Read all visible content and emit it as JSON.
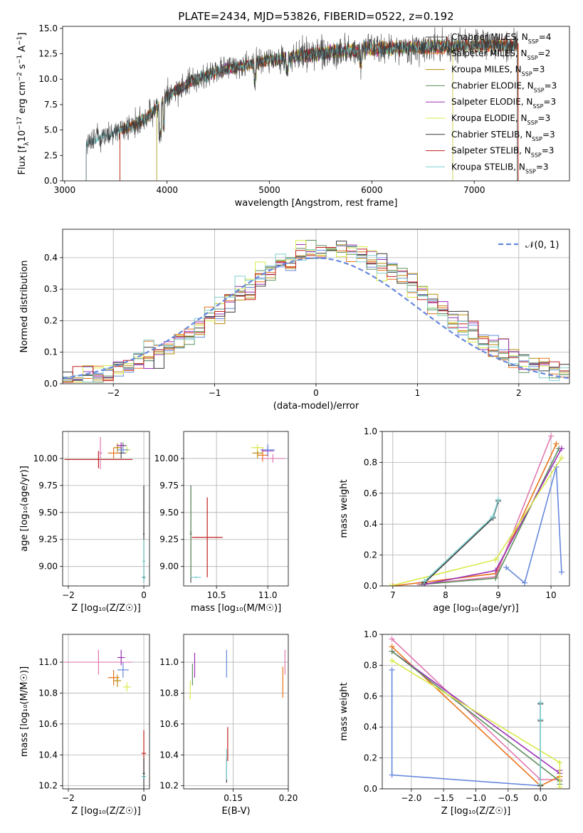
{
  "figure": {
    "title": "PLATE=2434, MJD=53826, FIBERID=0522, z=0.192"
  },
  "series_styles": [
    {
      "name": "Chabrier MILES",
      "nssp": "4",
      "color": "#4f4f4f"
    },
    {
      "name": "Salpeter MILES",
      "nssp": "2",
      "color": "#e8741c"
    },
    {
      "name": "Kroupa MILES",
      "nssp": "3",
      "color": "#b98a0a"
    },
    {
      "name": "Chabrier ELODIE",
      "nssp": "3",
      "color": "#5f8f5f"
    },
    {
      "name": "Salpeter ELODIE",
      "nssp": "3",
      "color": "#9b30b4"
    },
    {
      "name": "Kroupa ELODIE",
      "nssp": "3",
      "color": "#d9ea4a"
    },
    {
      "name": "Chabrier STELIB",
      "nssp": "3",
      "color": "#3a3a3a"
    },
    {
      "name": "Salpeter STELIB",
      "nssp": "3",
      "color": "#c0201e"
    },
    {
      "name": "Kroupa STELIB",
      "nssp": "3",
      "color": "#80d0d0"
    }
  ],
  "chart_data": [
    {
      "id": "spectrum",
      "type": "line",
      "xlabel": "wavelength [Angstrom, rest frame]",
      "ylabel_parts": [
        "Flux [f",
        "λ",
        "10",
        "−17",
        " erg cm",
        "−2",
        " s",
        "−1",
        " A",
        "−1",
        "]"
      ],
      "xlim": [
        2980,
        7930
      ],
      "ylim": [
        0,
        15.2
      ],
      "xticks": [
        3000,
        4000,
        5000,
        6000,
        7000
      ],
      "yticks": [
        0.0,
        2.5,
        5.0,
        7.5,
        10.0,
        12.5,
        15.0
      ],
      "ytick_labels": [
        "0.0",
        "2.5",
        "5.0",
        "7.5",
        "10.0",
        "12.5",
        "15.0"
      ],
      "legend_position": "upper-right",
      "legend": [
        {
          "name": "Chabrier MILES",
          "nssp": "4"
        },
        {
          "name": "Salpeter MILES",
          "nssp": "2"
        },
        {
          "name": "Kroupa MILES",
          "nssp": "3"
        },
        {
          "name": "Chabrier ELODIE",
          "nssp": "3"
        },
        {
          "name": "Salpeter ELODIE",
          "nssp": "3"
        },
        {
          "name": "Kroupa ELODIE",
          "nssp": "3"
        },
        {
          "name": "Chabrier STELIB",
          "nssp": "3"
        },
        {
          "name": "Salpeter STELIB",
          "nssp": "3"
        },
        {
          "name": "Kroupa STELIB",
          "nssp": "3"
        }
      ],
      "spectra": [
        {
          "name": "Chabrier MILES",
          "start": 3540,
          "end": 7430
        },
        {
          "name": "Salpeter MILES",
          "start": 3540,
          "end": 7430
        },
        {
          "name": "Kroupa MILES",
          "start": 3540,
          "end": 7430
        },
        {
          "name": "Chabrier ELODIE",
          "start": 3900,
          "end": 6790
        },
        {
          "name": "Salpeter ELODIE",
          "start": 3900,
          "end": 6790
        },
        {
          "name": "Kroupa ELODIE",
          "start": 3900,
          "end": 6790
        },
        {
          "name": "Chabrier STELIB",
          "start": 3210,
          "end": 7420
        },
        {
          "name": "Salpeter STELIB",
          "start": 3540,
          "end": 7430
        },
        {
          "name": "Kroupa STELIB",
          "start": 3210,
          "end": 7420
        }
      ],
      "continuum": {
        "x": [
          3200,
          3400,
          3600,
          3800,
          4000,
          4200,
          4500,
          5000,
          5500,
          6000,
          6500,
          7000,
          7500
        ],
        "y": [
          3.6,
          4.4,
          5.2,
          6.2,
          8.3,
          9.6,
          10.8,
          11.9,
          12.6,
          13.0,
          13.2,
          13.3,
          13.4
        ]
      }
    },
    {
      "id": "residuals",
      "type": "histogram",
      "xlabel": "(data-model)/error",
      "ylabel": "Normed distribution",
      "xlim": [
        -2.5,
        2.5
      ],
      "ylim": [
        0,
        0.49
      ],
      "xticks": [
        -2,
        -1,
        0,
        1,
        2
      ],
      "xtick_labels": [
        "−2",
        "−1",
        "0",
        "1",
        "2"
      ],
      "yticks": [
        0.0,
        0.1,
        0.2,
        0.3,
        0.4
      ],
      "ytick_labels": [
        "0.0",
        "0.1",
        "0.2",
        "0.3",
        "0.4"
      ],
      "grid": true,
      "legend_position": "upper-right",
      "legend": [
        {
          "name": "𝒩(0, 1)",
          "color": "#6688dd",
          "style": "dashed"
        }
      ],
      "bin_width": 0.1,
      "reference_curve": "normal(0,1)"
    },
    {
      "id": "age-vs-Z",
      "type": "errorbar",
      "xlabel": "Z [log₁₀(Z/Z☉)]",
      "ylabel": "age  [log₁₀(age/yr)]",
      "xlim": [
        -2.15,
        0.15
      ],
      "ylim": [
        8.82,
        10.25
      ],
      "xticks": [
        -2,
        0
      ],
      "xtick_labels": [
        "−2",
        "0"
      ],
      "yticks": [
        9.0,
        9.25,
        9.5,
        9.75,
        10.0
      ],
      "ytick_labels": [
        "9.00",
        "9.25",
        "9.50",
        "9.75",
        "10.00"
      ],
      "grid": true,
      "points": [
        {
          "name": "Chabrier MILES",
          "x": -0.6,
          "xerr": 0.12,
          "y": 10.05,
          "yerr": 0.05
        },
        {
          "name": "Salpeter MILES",
          "x": -0.8,
          "xerr": 0.15,
          "y": 10.05,
          "yerr": 0.05
        },
        {
          "name": "Kroupa MILES",
          "x": -0.7,
          "xerr": 0.1,
          "y": 10.1,
          "yerr": 0.04
        },
        {
          "name": "Chabrier ELODIE",
          "x": -0.55,
          "xerr": 0.1,
          "y": 10.12,
          "yerr": 0.03
        },
        {
          "name": "Salpeter ELODIE",
          "x": -0.6,
          "xerr": 0.12,
          "y": 10.12,
          "yerr": 0.03
        },
        {
          "name": "Kroupa ELODIE",
          "x": -0.45,
          "xerr": 0.1,
          "y": 10.08,
          "yerr": 0.03
        },
        {
          "name": "Chabrier STELIB",
          "x": 0.0,
          "xerr": 0.02,
          "y": 9.3,
          "yerr": 0.45
        },
        {
          "name": "Salpeter STELIB",
          "x": -1.2,
          "xerr": 0.9,
          "y": 9.99,
          "yerr": 0.08
        },
        {
          "name": "Kroupa STELIB",
          "x": 0.0,
          "xerr": 0.04,
          "y": 9.05,
          "yerr": 0.2
        },
        {
          "name": "Salpeter STELIB",
          "x": -1.15,
          "xerr": 0.05,
          "y": 10.05,
          "yerr": 0.15,
          "color": "#e07ab0"
        },
        {
          "name": "Salpeter MILES",
          "x": -0.55,
          "xerr": 0.15,
          "y": 10.08,
          "yerr": 0.03,
          "color": "#6688dd"
        },
        {
          "name": "Kroupa STELIB",
          "x": 0.0,
          "xerr": 0.05,
          "y": 8.9,
          "yerr": 0.01,
          "color": "#4aa0a0"
        }
      ]
    },
    {
      "id": "age-vs-mass",
      "type": "errorbar",
      "xlabel": "mass [log₁₀(M/M☉)]",
      "ylabel": "",
      "xlim": [
        10.18,
        11.2
      ],
      "ylim": [
        8.82,
        10.25
      ],
      "xticks": [
        10.5,
        11.0
      ],
      "xtick_labels": [
        "10.5",
        "11.0"
      ],
      "yticks": [
        9.0,
        9.25,
        9.5,
        9.75,
        10.0
      ],
      "ytick_labels": [
        "9.00",
        "9.25",
        "9.50",
        "9.75",
        "10.00"
      ],
      "grid": true,
      "points": [
        {
          "name": "Chabrier MILES",
          "x": 10.25,
          "xerr": 0.01,
          "y": 9.3,
          "yerr": 0.45
        },
        {
          "name": "Salpeter MILES",
          "x": 10.95,
          "xerr": 0.05,
          "y": 10.03,
          "yerr": 0.06
        },
        {
          "name": "Kroupa MILES",
          "x": 10.9,
          "xerr": 0.05,
          "y": 10.05,
          "yerr": 0.05
        },
        {
          "name": "Chabrier ELODIE",
          "x": 10.25,
          "xerr": 0.01,
          "y": 9.32,
          "yerr": 0.42
        },
        {
          "name": "Salpeter ELODIE",
          "x": 11.0,
          "xerr": 0.06,
          "y": 10.07,
          "yerr": 0.05
        },
        {
          "name": "Kroupa ELODIE",
          "x": 10.9,
          "xerr": 0.06,
          "y": 10.1,
          "yerr": 0.03
        },
        {
          "name": "Salpeter STELIB",
          "x": 10.41,
          "xerr": 0.15,
          "y": 9.27,
          "yerr": 0.37
        },
        {
          "name": "Kroupa STELIB",
          "x": 10.3,
          "xerr": 0.05,
          "y": 8.9,
          "yerr": 0.01
        },
        {
          "name": "Salpeter STELIB",
          "x": 11.05,
          "xerr": 0.12,
          "y": 10.0,
          "yerr": 0.04,
          "color": "#e07ab0"
        },
        {
          "name": "Salpeter MILES",
          "x": 11.0,
          "xerr": 0.07,
          "y": 10.08,
          "yerr": 0.05,
          "color": "#6688dd"
        }
      ]
    },
    {
      "id": "weight-vs-age",
      "type": "line",
      "xlabel": "age  [log₁₀(age/yr)]",
      "ylabel": "mass weight",
      "xlim": [
        6.8,
        10.35
      ],
      "ylim": [
        0,
        1
      ],
      "xticks": [
        7,
        8,
        9,
        10
      ],
      "yticks": [
        0.0,
        0.2,
        0.4,
        0.6,
        0.8,
        1.0
      ],
      "ytick_labels": [
        "0.0",
        "0.2",
        "0.4",
        "0.6",
        "0.8",
        "1.0"
      ],
      "grid": true,
      "series": [
        {
          "name": "Chabrier MILES",
          "color": "#6688dd",
          "x": [
            9.15,
            9.5,
            10.1,
            10.2
          ],
          "y": [
            0.12,
            0.02,
            0.77,
            0.09
          ]
        },
        {
          "name": "Salpeter MILES",
          "x": [
            7.0,
            8.95,
            10.1
          ],
          "y": [
            0.0,
            0.08,
            0.92
          ]
        },
        {
          "name": "Kroupa MILES",
          "color": "#e07ab0",
          "x": [
            7.5,
            8.95,
            10.0
          ],
          "y": [
            0.01,
            0.06,
            0.97
          ]
        },
        {
          "name": "Chabrier ELODIE",
          "x": [
            7.55,
            8.95,
            10.15
          ],
          "y": [
            0.01,
            0.05,
            0.89
          ]
        },
        {
          "name": "Salpeter ELODIE",
          "x": [
            7.6,
            8.95,
            10.2
          ],
          "y": [
            0.01,
            0.1,
            0.89
          ]
        },
        {
          "name": "Kroupa ELODIE",
          "x": [
            6.95,
            8.95,
            10.2
          ],
          "y": [
            0.0,
            0.17,
            0.83
          ]
        },
        {
          "name": "Chabrier STELIB",
          "x": [
            7.6,
            8.9,
            9.0
          ],
          "y": [
            0.02,
            0.44,
            0.55
          ]
        },
        {
          "name": "Kroupa STELIB",
          "x": [
            7.6,
            8.9,
            9.0
          ],
          "y": [
            0.03,
            0.45,
            0.56
          ]
        }
      ]
    },
    {
      "id": "mass-vs-Z",
      "type": "errorbar",
      "xlabel": "Z [log₁₀(Z/Z☉)]",
      "ylabel": "mass [log₁₀(M/M☉)]",
      "xlim": [
        -2.15,
        0.15
      ],
      "ylim": [
        10.18,
        11.18
      ],
      "xticks": [
        -2,
        0
      ],
      "xtick_labels": [
        "−2",
        "0"
      ],
      "yticks": [
        10.2,
        10.4,
        10.6,
        10.8,
        11.0
      ],
      "ytick_labels": [
        "10.2",
        "10.4",
        "10.6",
        "10.8",
        "11.0"
      ],
      "grid": true,
      "points": [
        {
          "name": "Salpeter STELIB",
          "x": -1.2,
          "xerr": 0.9,
          "y": 11.0,
          "yerr": 0.08,
          "color": "#e07ab0"
        },
        {
          "name": "Salpeter ELODIE",
          "x": -0.6,
          "xerr": 0.1,
          "y": 11.03,
          "yerr": 0.05
        },
        {
          "name": "Salpeter MILES",
          "x": -0.55,
          "xerr": 0.15,
          "y": 10.95,
          "yerr": 0.05,
          "color": "#6688dd"
        },
        {
          "name": "Salpeter MILES",
          "x": -0.8,
          "xerr": 0.15,
          "y": 10.9,
          "yerr": 0.05
        },
        {
          "name": "Kroupa MILES",
          "x": -0.7,
          "xerr": 0.1,
          "y": 10.88,
          "yerr": 0.04
        },
        {
          "name": "Kroupa ELODIE",
          "x": -0.45,
          "xerr": 0.1,
          "y": 10.84,
          "yerr": 0.03
        },
        {
          "name": "Salpeter STELIB",
          "x": 0.0,
          "xerr": 0.06,
          "y": 10.41,
          "yerr": 0.15
        },
        {
          "name": "Chabrier STELIB",
          "x": 0.0,
          "xerr": 0.03,
          "y": 10.28,
          "yerr": 0.1
        },
        {
          "name": "Kroupa STELIB",
          "x": 0.0,
          "xerr": 0.05,
          "y": 10.26,
          "yerr": 0.01,
          "color": "#4aa0a0"
        }
      ]
    },
    {
      "id": "mass-vs-EBV",
      "type": "errorbar",
      "xlabel": "E(B-V)",
      "ylabel": "",
      "xlim": [
        0.105,
        0.2
      ],
      "ylim": [
        10.18,
        11.18
      ],
      "xticks": [
        0.15,
        0.2
      ],
      "xtick_labels": [
        "0.15",
        "0.20"
      ],
      "yticks": [
        10.2,
        10.4,
        10.6,
        10.8,
        11.0
      ],
      "ytick_labels": [
        "10.2",
        "10.4",
        "10.6",
        "10.8",
        "11.0"
      ],
      "grid": true,
      "points": [
        {
          "name": "Salpeter STELIB",
          "x": 0.197,
          "xerr": 0.0,
          "y": 11.0,
          "yerr": 0.08,
          "color": "#e07ab0"
        },
        {
          "name": "Salpeter MILES",
          "x": 0.195,
          "xerr": 0.0,
          "y": 10.87,
          "yerr": 0.1
        },
        {
          "name": "Salpeter ELODIE",
          "x": 0.115,
          "xerr": 0.0,
          "y": 10.98,
          "yerr": 0.08
        },
        {
          "name": "Chabrier ELODIE",
          "x": 0.113,
          "xerr": 0.0,
          "y": 10.92,
          "yerr": 0.07
        },
        {
          "name": "Kroupa ELODIE",
          "x": 0.111,
          "xerr": 0.0,
          "y": 10.82,
          "yerr": 0.06
        },
        {
          "name": "Salpeter MILES",
          "x": 0.144,
          "xerr": 0.0,
          "y": 10.99,
          "yerr": 0.09,
          "color": "#6688dd"
        },
        {
          "name": "Salpeter STELIB",
          "x": 0.145,
          "xerr": 0.0,
          "y": 10.47,
          "yerr": 0.11
        },
        {
          "name": "Chabrier STELIB",
          "x": 0.144,
          "xerr": 0.0,
          "y": 10.3,
          "yerr": 0.08
        },
        {
          "name": "Kroupa STELIB",
          "x": 0.144,
          "xerr": 0.0,
          "y": 10.34,
          "yerr": 0.1
        }
      ]
    },
    {
      "id": "weight-vs-Z",
      "type": "line",
      "xlabel": "Z [log₁₀(Z/Z☉)]",
      "ylabel": "mass weight",
      "xlim": [
        -2.45,
        0.45
      ],
      "ylim": [
        0,
        1
      ],
      "xticks": [
        -2.0,
        -1.5,
        -1.0,
        -0.5,
        0.0
      ],
      "xtick_labels": [
        "−2.0",
        "−1.5",
        "−1.0",
        "−0.5",
        "0.0"
      ],
      "yticks": [
        0.0,
        0.2,
        0.4,
        0.6,
        0.8,
        1.0
      ],
      "ytick_labels": [
        "0.0",
        "0.2",
        "0.4",
        "0.6",
        "0.8",
        "1.0"
      ],
      "grid": true,
      "series": [
        {
          "name": "Chabrier MILES",
          "color": "#6688dd",
          "x": [
            -2.3,
            -2.3,
            0.0,
            0.0
          ],
          "y": [
            0.77,
            0.09,
            0.02,
            0.55
          ]
        },
        {
          "name": "Kroupa MILES",
          "color": "#e07ab0",
          "x": [
            -2.3,
            0.0,
            0.3
          ],
          "y": [
            0.97,
            0.06,
            0.06
          ]
        },
        {
          "name": "Salpeter MILES",
          "x": [
            -2.3,
            0.0,
            0.3
          ],
          "y": [
            0.92,
            0.02,
            0.08
          ]
        },
        {
          "name": "Salpeter ELODIE",
          "x": [
            -2.3,
            0.3,
            0.3
          ],
          "y": [
            0.89,
            0.1,
            0.12
          ]
        },
        {
          "name": "Chabrier ELODIE",
          "x": [
            -2.3,
            0.3,
            0.3
          ],
          "y": [
            0.89,
            0.05,
            0.03
          ]
        },
        {
          "name": "Kroupa ELODIE",
          "x": [
            -2.3,
            0.3,
            0.3
          ],
          "y": [
            0.83,
            0.17,
            0.01
          ]
        },
        {
          "name": "Chabrier STELIB",
          "x": [
            0.0,
            0.0,
            0.0
          ],
          "y": [
            0.02,
            0.44,
            0.55
          ]
        },
        {
          "name": "Kroupa STELIB",
          "x": [
            0.0,
            0.0,
            0.0
          ],
          "y": [
            0.03,
            0.45,
            0.56
          ]
        }
      ]
    }
  ]
}
